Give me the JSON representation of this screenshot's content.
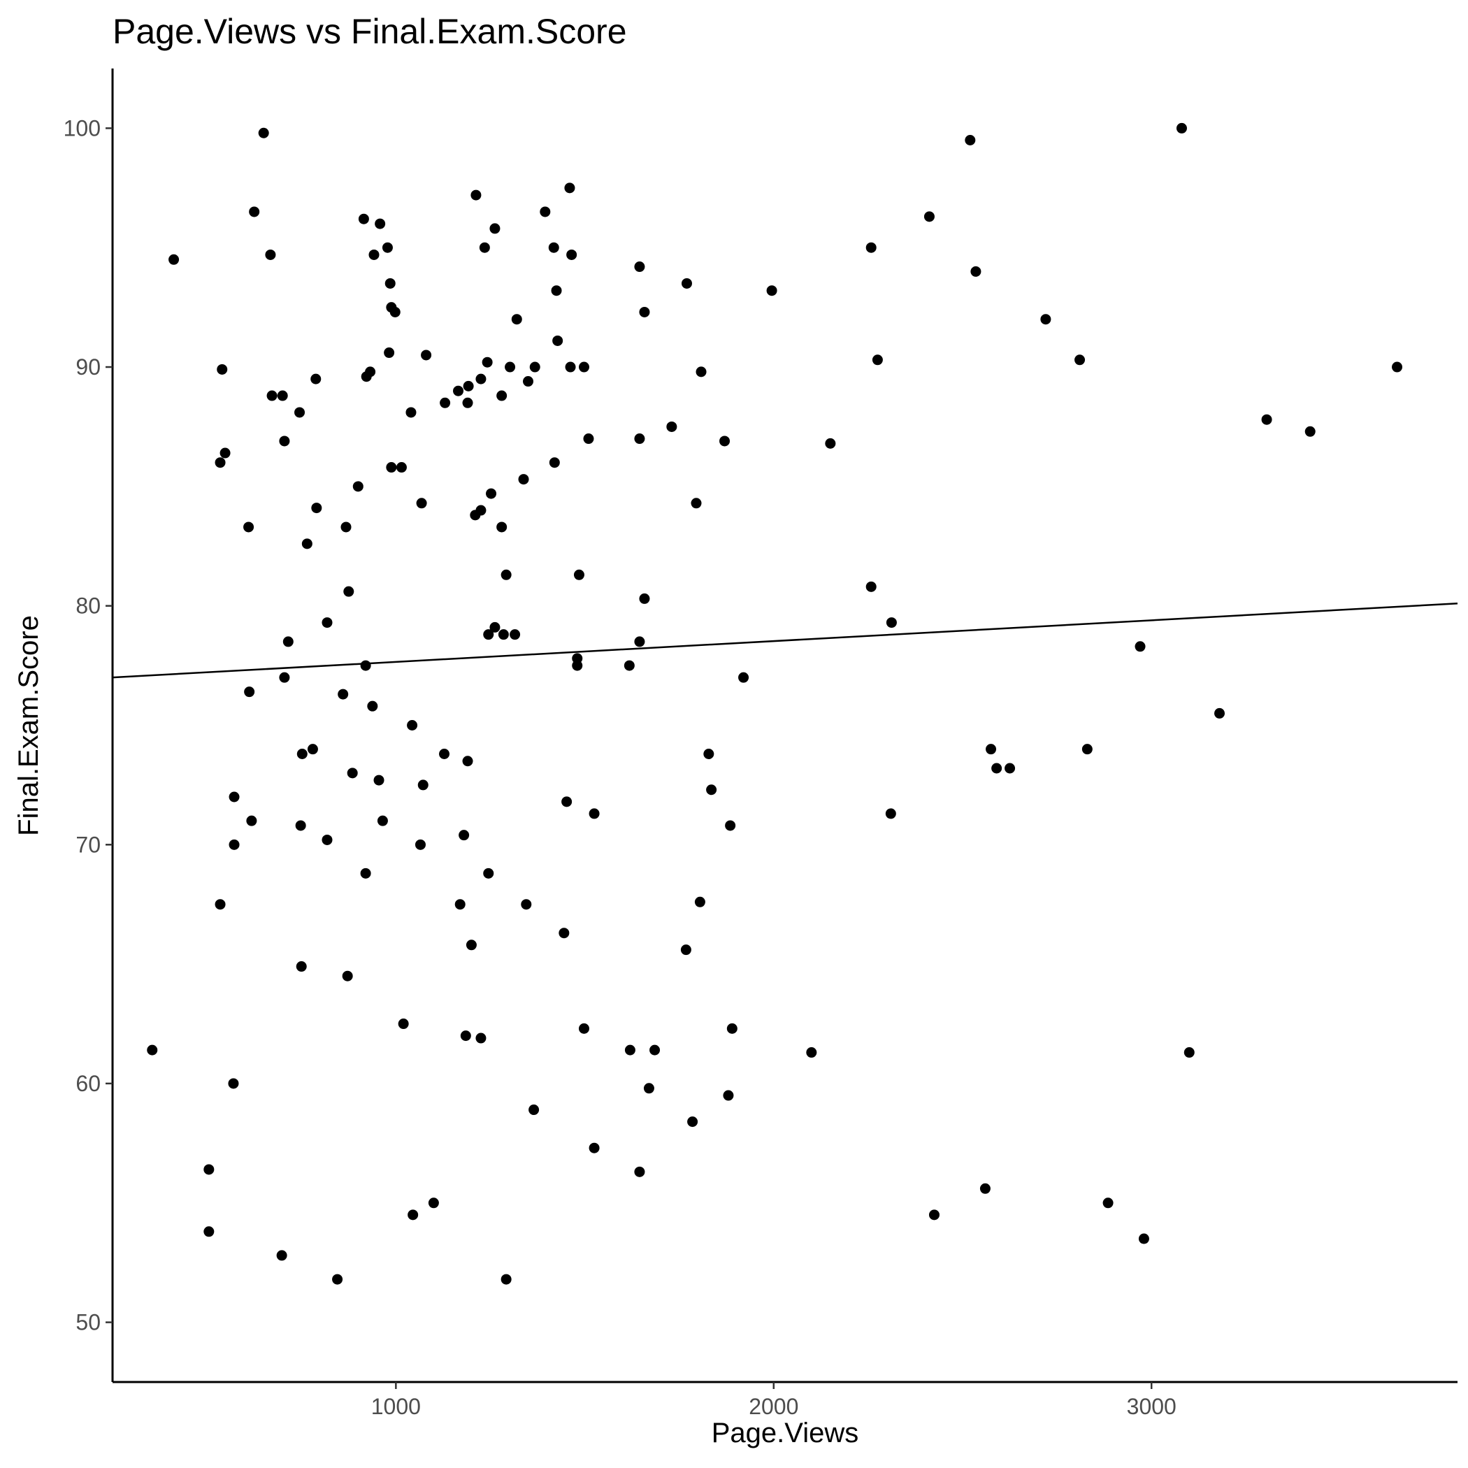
{
  "chart_data": {
    "type": "scatter",
    "title": "Page.Views vs Final.Exam.Score",
    "xlabel": "Page.Views",
    "ylabel": "Final.Exam.Score",
    "xlim": [
      250,
      3810
    ],
    "ylim": [
      47.5,
      102.5
    ],
    "xticks": [
      1000,
      2000,
      3000
    ],
    "yticks": [
      50,
      60,
      70,
      80,
      90,
      100
    ],
    "grid": false,
    "colors": {
      "point": "#000000",
      "line": "#000000",
      "axis": "#000000",
      "tick_label": "#4d4d4d"
    },
    "trend_line": {
      "x": [
        250,
        3810
      ],
      "y": [
        77.0,
        80.1
      ]
    },
    "points": [
      [
        412,
        94.5
      ],
      [
        650,
        99.8
      ],
      [
        625,
        96.5
      ],
      [
        668,
        94.7
      ],
      [
        355,
        61.4
      ],
      [
        540,
        89.9
      ],
      [
        548,
        86.4
      ],
      [
        535,
        86.0
      ],
      [
        610,
        83.3
      ],
      [
        672,
        88.8
      ],
      [
        700,
        88.8
      ],
      [
        705,
        86.9
      ],
      [
        745,
        88.1
      ],
      [
        788,
        89.5
      ],
      [
        765,
        82.6
      ],
      [
        790,
        84.1
      ],
      [
        868,
        83.3
      ],
      [
        875,
        80.6
      ],
      [
        818,
        79.3
      ],
      [
        715,
        78.5
      ],
      [
        705,
        77.0
      ],
      [
        612,
        76.4
      ],
      [
        860,
        76.3
      ],
      [
        938,
        75.8
      ],
      [
        780,
        74.0
      ],
      [
        752,
        73.8
      ],
      [
        885,
        73.0
      ],
      [
        955,
        72.7
      ],
      [
        572,
        72.0
      ],
      [
        618,
        71.0
      ],
      [
        748,
        70.8
      ],
      [
        965,
        71.0
      ],
      [
        818,
        70.2
      ],
      [
        572,
        70.0
      ],
      [
        920,
        68.8
      ],
      [
        535,
        67.5
      ],
      [
        750,
        64.9
      ],
      [
        872,
        64.5
      ],
      [
        570,
        60.0
      ],
      [
        505,
        56.4
      ],
      [
        505,
        53.8
      ],
      [
        698,
        52.8
      ],
      [
        845,
        51.8
      ],
      [
        915,
        96.2
      ],
      [
        958,
        96.0
      ],
      [
        978,
        95.0
      ],
      [
        942,
        94.7
      ],
      [
        985,
        93.5
      ],
      [
        988,
        92.5
      ],
      [
        998,
        92.3
      ],
      [
        982,
        90.6
      ],
      [
        922,
        89.6
      ],
      [
        932,
        89.8
      ],
      [
        900,
        85.0
      ],
      [
        988,
        85.8
      ],
      [
        1015,
        85.8
      ],
      [
        920,
        77.5
      ],
      [
        1040,
        88.1
      ],
      [
        1068,
        84.3
      ],
      [
        1080,
        90.5
      ],
      [
        1043,
        75.0
      ],
      [
        1072,
        72.5
      ],
      [
        1065,
        70.0
      ],
      [
        1020,
        62.5
      ],
      [
        1045,
        54.5
      ],
      [
        1100,
        55.0
      ],
      [
        1212,
        97.2
      ],
      [
        1262,
        95.8
      ],
      [
        1235,
        95.0
      ],
      [
        1395,
        96.5
      ],
      [
        1418,
        95.0
      ],
      [
        1460,
        97.5
      ],
      [
        1465,
        94.7
      ],
      [
        1425,
        93.2
      ],
      [
        1428,
        91.1
      ],
      [
        1320,
        92.0
      ],
      [
        1130,
        88.5
      ],
      [
        1165,
        89.0
      ],
      [
        1192,
        89.2
      ],
      [
        1225,
        89.5
      ],
      [
        1242,
        90.2
      ],
      [
        1190,
        88.5
      ],
      [
        1280,
        88.8
      ],
      [
        1302,
        90.0
      ],
      [
        1368,
        90.0
      ],
      [
        1350,
        89.4
      ],
      [
        1462,
        90.0
      ],
      [
        1498,
        90.0
      ],
      [
        1210,
        83.8
      ],
      [
        1225,
        84.0
      ],
      [
        1252,
        84.7
      ],
      [
        1280,
        83.3
      ],
      [
        1338,
        85.3
      ],
      [
        1420,
        86.0
      ],
      [
        1510,
        87.0
      ],
      [
        1292,
        81.3
      ],
      [
        1262,
        79.1
      ],
      [
        1245,
        78.8
      ],
      [
        1285,
        78.8
      ],
      [
        1315,
        78.8
      ],
      [
        1485,
        81.3
      ],
      [
        1480,
        77.8
      ],
      [
        1480,
        77.5
      ],
      [
        1128,
        73.8
      ],
      [
        1190,
        73.5
      ],
      [
        1452,
        71.8
      ],
      [
        1525,
        71.3
      ],
      [
        1180,
        70.4
      ],
      [
        1245,
        68.8
      ],
      [
        1170,
        67.5
      ],
      [
        1345,
        67.5
      ],
      [
        1445,
        66.3
      ],
      [
        1200,
        65.8
      ],
      [
        1185,
        62.0
      ],
      [
        1225,
        61.9
      ],
      [
        1498,
        62.3
      ],
      [
        1365,
        58.9
      ],
      [
        1525,
        57.3
      ],
      [
        1292,
        51.8
      ],
      [
        1645,
        94.2
      ],
      [
        1658,
        92.3
      ],
      [
        1770,
        93.5
      ],
      [
        1645,
        87.0
      ],
      [
        1730,
        87.5
      ],
      [
        1808,
        89.8
      ],
      [
        1870,
        86.9
      ],
      [
        1795,
        84.3
      ],
      [
        1658,
        80.3
      ],
      [
        1645,
        78.5
      ],
      [
        1618,
        77.5
      ],
      [
        1920,
        77.0
      ],
      [
        1828,
        73.8
      ],
      [
        1835,
        72.3
      ],
      [
        1885,
        70.8
      ],
      [
        1805,
        67.6
      ],
      [
        1768,
        65.6
      ],
      [
        1620,
        61.4
      ],
      [
        1685,
        61.4
      ],
      [
        1890,
        62.3
      ],
      [
        1670,
        59.8
      ],
      [
        1880,
        59.5
      ],
      [
        1785,
        58.4
      ],
      [
        1645,
        56.3
      ],
      [
        1995,
        93.2
      ],
      [
        2150,
        86.8
      ],
      [
        2258,
        95.0
      ],
      [
        2275,
        90.3
      ],
      [
        2258,
        80.8
      ],
      [
        2312,
        79.3
      ],
      [
        2310,
        71.3
      ],
      [
        2100,
        61.3
      ],
      [
        2412,
        96.3
      ],
      [
        2520,
        99.5
      ],
      [
        2535,
        94.0
      ],
      [
        2575,
        74.0
      ],
      [
        2590,
        73.2
      ],
      [
        2625,
        73.2
      ],
      [
        2425,
        54.5
      ],
      [
        2560,
        55.6
      ],
      [
        2720,
        92.0
      ],
      [
        2810,
        90.3
      ],
      [
        2830,
        74.0
      ],
      [
        2885,
        55.0
      ],
      [
        2970,
        78.3
      ],
      [
        3080,
        100.0
      ],
      [
        3100,
        61.3
      ],
      [
        3180,
        75.5
      ],
      [
        2980,
        53.5
      ],
      [
        3305,
        87.8
      ],
      [
        3420,
        87.3
      ],
      [
        3650,
        90.0
      ]
    ]
  }
}
